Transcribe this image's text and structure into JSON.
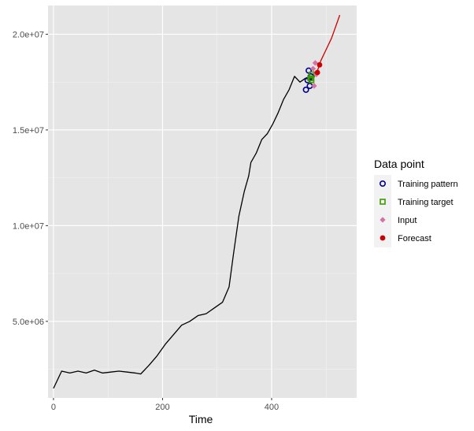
{
  "chart_data": {
    "type": "line",
    "title": "",
    "xlabel": "Time",
    "ylabel": "",
    "xlim": [
      -10,
      556
    ],
    "ylim": [
      1000000,
      21500000
    ],
    "x_ticks": [
      0,
      200,
      400
    ],
    "x_tick_labels": [
      "0",
      "200",
      "400"
    ],
    "y_ticks": [
      5000000,
      10000000,
      15000000,
      20000000
    ],
    "y_tick_labels": [
      "5.0e+06",
      "1.0e+07",
      "1.5e+07",
      "2.0e+07"
    ],
    "grid": true,
    "legend_position": "right",
    "legend_title": "Data point",
    "series": [
      {
        "name": "",
        "color": "#000000",
        "points": [
          [
            0,
            1500000
          ],
          [
            15,
            2400000
          ],
          [
            30,
            2300000
          ],
          [
            45,
            2400000
          ],
          [
            60,
            2300000
          ],
          [
            75,
            2450000
          ],
          [
            90,
            2300000
          ],
          [
            105,
            2350000
          ],
          [
            120,
            2400000
          ],
          [
            135,
            2350000
          ],
          [
            150,
            2300000
          ],
          [
            160,
            2250000
          ],
          [
            175,
            2700000
          ],
          [
            190,
            3200000
          ],
          [
            205,
            3800000
          ],
          [
            220,
            4300000
          ],
          [
            235,
            4800000
          ],
          [
            250,
            5000000
          ],
          [
            265,
            5300000
          ],
          [
            280,
            5400000
          ],
          [
            295,
            5700000
          ],
          [
            310,
            6000000
          ],
          [
            322,
            6800000
          ],
          [
            330,
            8500000
          ],
          [
            340,
            10500000
          ],
          [
            350,
            11800000
          ],
          [
            358,
            12600000
          ],
          [
            362,
            13300000
          ],
          [
            372,
            13800000
          ],
          [
            382,
            14500000
          ],
          [
            392,
            14800000
          ],
          [
            402,
            15300000
          ],
          [
            412,
            15900000
          ],
          [
            422,
            16600000
          ],
          [
            432,
            17100000
          ],
          [
            442,
            17800000
          ],
          [
            452,
            17500000
          ],
          [
            462,
            17700000
          ],
          [
            472,
            17600000
          ],
          [
            482,
            18000000
          ]
        ]
      },
      {
        "name": "Forecast",
        "color": "#cc0000",
        "points": [
          [
            475,
            17900000
          ],
          [
            483,
            18000000
          ],
          [
            490,
            18600000
          ],
          [
            500,
            19200000
          ],
          [
            510,
            19800000
          ],
          [
            525,
            21000000
          ]
        ]
      }
    ],
    "markers": [
      {
        "name": "Training pattern",
        "shape": "circle-open",
        "color": "#00008b",
        "points": [
          [
            463,
            17100000
          ],
          [
            466,
            17600000
          ],
          [
            468,
            18100000
          ],
          [
            470,
            17300000
          ],
          [
            472,
            17800000
          ]
        ]
      },
      {
        "name": "Training target",
        "shape": "square-open",
        "color": "#3a9c00",
        "points": [
          [
            471,
            17700000
          ],
          [
            473,
            17600000
          ],
          [
            474,
            17900000
          ]
        ]
      },
      {
        "name": "Input",
        "shape": "diamond",
        "color": "#d671a8",
        "points": [
          [
            478,
            17300000
          ],
          [
            480,
            18500000
          ],
          [
            482,
            17900000
          ],
          [
            476,
            18200000
          ]
        ]
      },
      {
        "name": "Forecast",
        "shape": "circle-filled",
        "color": "#cc0000",
        "points": [
          [
            484,
            18000000
          ],
          [
            488,
            18400000
          ]
        ]
      }
    ],
    "legend_entries": [
      {
        "label": "Training pattern",
        "shape": "circle-open",
        "color": "#00008b"
      },
      {
        "label": "Training target",
        "shape": "square-open",
        "color": "#3a9c00"
      },
      {
        "label": "Input",
        "shape": "diamond",
        "color": "#d671a8"
      },
      {
        "label": "Forecast",
        "shape": "circle-filled",
        "color": "#cc0000"
      }
    ]
  }
}
